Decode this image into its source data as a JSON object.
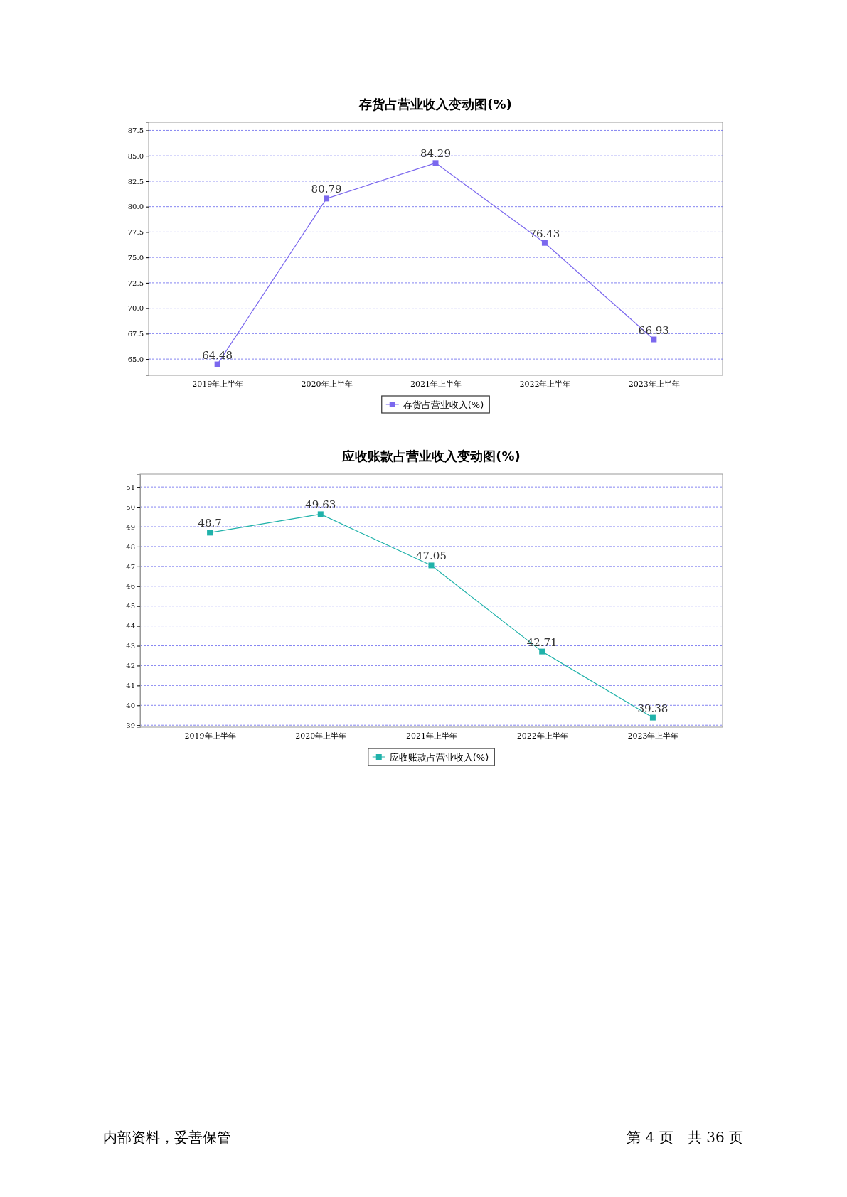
{
  "chart_data": [
    {
      "type": "line",
      "title": "存货占营业收入变动图(%)",
      "categories": [
        "2019年上半年",
        "2020年上半年",
        "2021年上半年",
        "2022年上半年",
        "2023年上半年"
      ],
      "series": [
        {
          "name": "存货占营业收入(%)",
          "color": "#7b68ee",
          "values": [
            64.48,
            80.79,
            84.29,
            76.43,
            66.93
          ]
        }
      ],
      "ylim": [
        63.4,
        88.3
      ],
      "yticks": [
        {
          "value": 65,
          "label": "65.0"
        },
        {
          "value": 67.5,
          "label": "67.5"
        },
        {
          "value": 70,
          "label": "70.0"
        },
        {
          "value": 72.5,
          "label": "72.5"
        },
        {
          "value": 75,
          "label": "75.0"
        },
        {
          "value": 77.5,
          "label": "77.5"
        },
        {
          "value": 80,
          "label": "80.0"
        },
        {
          "value": 82.5,
          "label": "82.5"
        },
        {
          "value": 85,
          "label": "85.0"
        },
        {
          "value": 87.5,
          "label": "87.5"
        }
      ],
      "grid": "y",
      "legend": "bottom",
      "marker": "square",
      "line_style": "solid",
      "data_labels": true
    },
    {
      "type": "line",
      "title": "应收账款占营业收入变动图(%)",
      "categories": [
        "2019年上半年",
        "2020年上半年",
        "2021年上半年",
        "2022年上半年",
        "2023年上半年"
      ],
      "series": [
        {
          "name": "应收账款占营业收入(%)",
          "color": "#20b2aa",
          "values": [
            48.7,
            49.63,
            47.05,
            42.71,
            39.38
          ]
        }
      ],
      "ylim": [
        38.9,
        51.65
      ],
      "yticks": [
        39,
        40,
        41,
        42,
        43,
        44,
        45,
        46,
        47,
        48,
        49,
        50,
        51
      ],
      "grid": "y",
      "legend": "bottom",
      "marker": "square",
      "line_style": "solid",
      "data_labels": true,
      "annotations": [
        "内部资料，妥善保管",
        "第 4 页　共 36 页"
      ]
    }
  ]
}
